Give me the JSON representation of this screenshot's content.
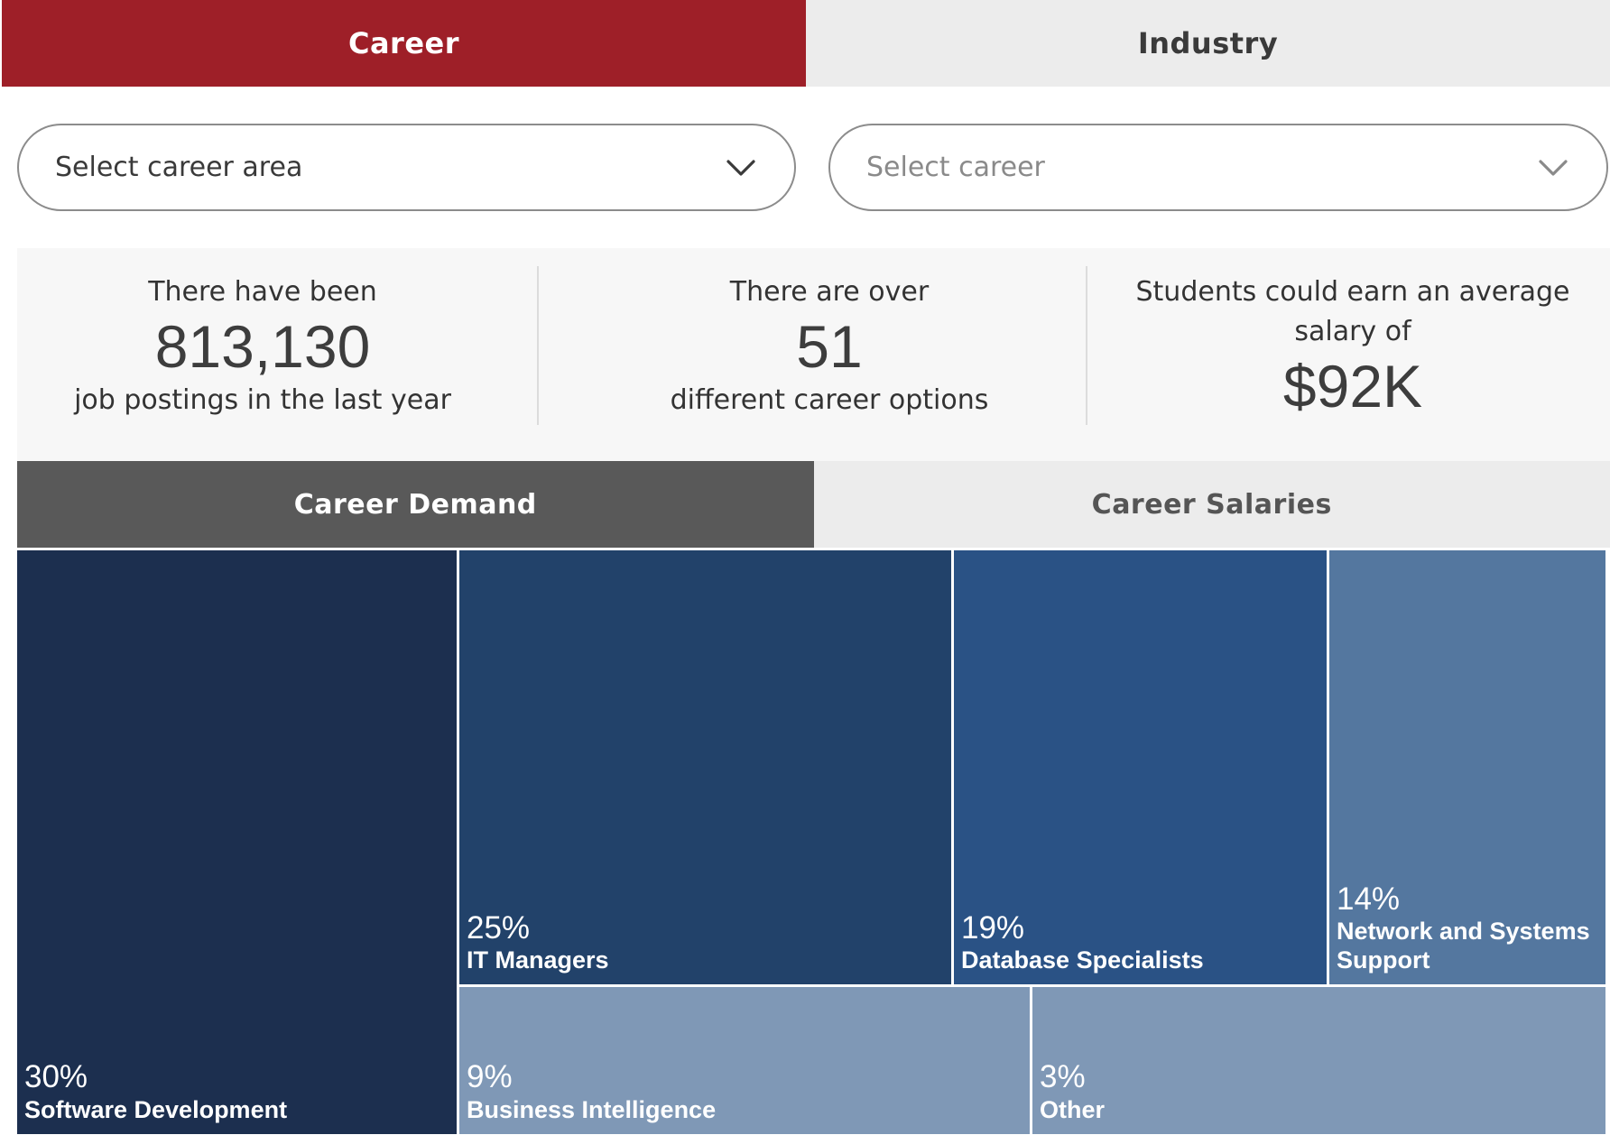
{
  "top_tabs": [
    {
      "label": "Career",
      "active": true
    },
    {
      "label": "Industry",
      "active": false
    }
  ],
  "selects": {
    "career_area": {
      "label": "Select career area"
    },
    "career": {
      "label": "Select career"
    }
  },
  "stats": [
    {
      "pre": "There have been",
      "value": "813,130",
      "post": "job postings in the last year"
    },
    {
      "pre": "There are over",
      "value": "51",
      "post": "different career options"
    },
    {
      "pre": "Students could earn an average salary of",
      "value": "$92K",
      "post": ""
    }
  ],
  "sub_tabs": [
    {
      "label": "Career Demand",
      "active": true
    },
    {
      "label": "Career Salaries",
      "active": false
    }
  ],
  "colors": {
    "accent": "#9e1f28",
    "tab_active_dark": "#595959",
    "treemap": [
      "#1c2f4f",
      "#22426a",
      "#2a5285",
      "#54779f",
      "#7f98b6",
      "#7f98b6"
    ]
  },
  "chart_data": {
    "type": "treemap",
    "title": "",
    "items": [
      {
        "label": "Software Development",
        "percent_label": "30%",
        "value": 30
      },
      {
        "label": "IT Managers",
        "percent_label": "25%",
        "value": 25
      },
      {
        "label": "Database Specialists",
        "percent_label": "19%",
        "value": 19
      },
      {
        "label": "Network and Systems Support",
        "percent_label": "14%",
        "value": 14
      },
      {
        "label": "Business Intelligence",
        "percent_label": "9%",
        "value": 9
      },
      {
        "label": "Other",
        "percent_label": "3%",
        "value": 3
      }
    ]
  }
}
